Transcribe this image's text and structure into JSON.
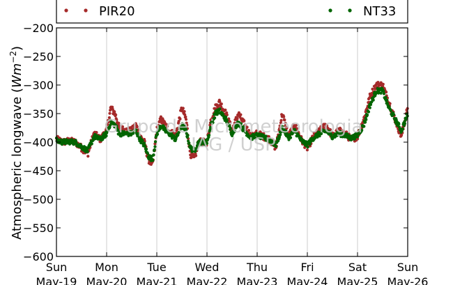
{
  "chart_data": {
    "type": "scatter",
    "ylabel_text": "Atmospheric longwave (",
    "ylabel_unit_base": "Wm",
    "ylabel_unit_exp": "−2",
    "ylabel_close": ")",
    "xlim_days": [
      0,
      7
    ],
    "ylim": [
      -600,
      -200
    ],
    "yticks": [
      -200,
      -250,
      -300,
      -350,
      -400,
      -450,
      -500,
      -550,
      -600
    ],
    "ytick_labels": [
      "−200",
      "−250",
      "−300",
      "−350",
      "−400",
      "−450",
      "−500",
      "−550",
      "−600"
    ],
    "xticks": [
      {
        "day": "Sun",
        "date": "May-19"
      },
      {
        "day": "Mon",
        "date": "May-20"
      },
      {
        "day": "Tue",
        "date": "May-21"
      },
      {
        "day": "Wed",
        "date": "May-22"
      },
      {
        "day": "Thu",
        "date": "May-23"
      },
      {
        "day": "Fri",
        "date": "May-24"
      },
      {
        "day": "Sat",
        "date": "May-25"
      },
      {
        "day": "Sun",
        "date": "May-26"
      }
    ],
    "grid": "vertical",
    "legend_placement": "top",
    "series": [
      {
        "name": "PIR20",
        "color": "#a52a2a",
        "points": [
          [
            "May-19 00:00",
            -395
          ],
          [
            "May-19 03:00",
            -400
          ],
          [
            "May-19 06:00",
            -398
          ],
          [
            "May-19 09:00",
            -400
          ],
          [
            "May-19 12:00",
            -410
          ],
          [
            "May-19 15:00",
            -420
          ],
          [
            "May-19 18:00",
            -385
          ],
          [
            "May-19 21:00",
            -395
          ],
          [
            "May-20 00:00",
            -380
          ],
          [
            "May-20 02:00",
            -340
          ],
          [
            "May-20 04:00",
            -350
          ],
          [
            "May-20 06:00",
            -375
          ],
          [
            "May-20 09:00",
            -380
          ],
          [
            "May-20 12:00",
            -380
          ],
          [
            "May-20 14:00",
            -370
          ],
          [
            "May-20 16:00",
            -390
          ],
          [
            "May-20 18:00",
            -400
          ],
          [
            "May-20 20:00",
            -430
          ],
          [
            "May-20 22:00",
            -440
          ],
          [
            "May-21 00:00",
            -380
          ],
          [
            "May-21 02:00",
            -360
          ],
          [
            "May-21 04:00",
            -370
          ],
          [
            "May-21 06:00",
            -380
          ],
          [
            "May-21 09:00",
            -390
          ],
          [
            "May-21 12:00",
            -340
          ],
          [
            "May-21 14:00",
            -360
          ],
          [
            "May-21 16:00",
            -420
          ],
          [
            "May-21 18:00",
            -430
          ],
          [
            "May-21 20:00",
            -400
          ],
          [
            "May-22 00:00",
            -400
          ],
          [
            "May-22 02:00",
            -360
          ],
          [
            "May-22 04:00",
            -340
          ],
          [
            "May-22 06:00",
            -330
          ],
          [
            "May-22 09:00",
            -350
          ],
          [
            "May-22 12:00",
            -380
          ],
          [
            "May-22 15:00",
            -350
          ],
          [
            "May-22 18:00",
            -370
          ],
          [
            "May-22 21:00",
            -390
          ],
          [
            "May-23 00:00",
            -385
          ],
          [
            "May-23 03:00",
            -390
          ],
          [
            "May-23 06:00",
            -395
          ],
          [
            "May-23 09:00",
            -410
          ],
          [
            "May-23 12:00",
            -350
          ],
          [
            "May-23 15:00",
            -390
          ],
          [
            "May-23 18:00",
            -370
          ],
          [
            "May-23 21:00",
            -395
          ],
          [
            "May-24 00:00",
            -410
          ],
          [
            "May-24 03:00",
            -390
          ],
          [
            "May-24 06:00",
            -380
          ],
          [
            "May-24 09:00",
            -370
          ],
          [
            "May-24 12:00",
            -390
          ],
          [
            "May-24 15:00",
            -380
          ],
          [
            "May-24 18:00",
            -385
          ],
          [
            "May-24 21:00",
            -395
          ],
          [
            "May-25 00:00",
            -390
          ],
          [
            "May-25 03:00",
            -360
          ],
          [
            "May-25 06:00",
            -320
          ],
          [
            "May-25 09:00",
            -300
          ],
          [
            "May-25 12:00",
            -300
          ],
          [
            "May-25 15:00",
            -330
          ],
          [
            "May-25 18:00",
            -360
          ],
          [
            "May-25 21:00",
            -390
          ],
          [
            "May-26 00:00",
            -340
          ]
        ]
      },
      {
        "name": "NT33",
        "color": "#006400",
        "points": [
          [
            "May-19 00:00",
            -397
          ],
          [
            "May-19 03:00",
            -400
          ],
          [
            "May-19 06:00",
            -399
          ],
          [
            "May-19 09:00",
            -400
          ],
          [
            "May-19 12:00",
            -408
          ],
          [
            "May-19 15:00",
            -415
          ],
          [
            "May-19 18:00",
            -390
          ],
          [
            "May-19 21:00",
            -395
          ],
          [
            "May-20 00:00",
            -385
          ],
          [
            "May-20 02:00",
            -365
          ],
          [
            "May-20 04:00",
            -370
          ],
          [
            "May-20 06:00",
            -385
          ],
          [
            "May-20 09:00",
            -385
          ],
          [
            "May-20 12:00",
            -385
          ],
          [
            "May-20 14:00",
            -380
          ],
          [
            "May-20 16:00",
            -395
          ],
          [
            "May-20 18:00",
            -405
          ],
          [
            "May-20 20:00",
            -425
          ],
          [
            "May-20 22:00",
            -430
          ],
          [
            "May-21 00:00",
            -385
          ],
          [
            "May-21 02:00",
            -370
          ],
          [
            "May-21 04:00",
            -380
          ],
          [
            "May-21 06:00",
            -385
          ],
          [
            "May-21 09:00",
            -395
          ],
          [
            "May-21 12:00",
            -370
          ],
          [
            "May-21 14:00",
            -380
          ],
          [
            "May-21 16:00",
            -410
          ],
          [
            "May-21 18:00",
            -415
          ],
          [
            "May-21 20:00",
            -400
          ],
          [
            "May-22 00:00",
            -400
          ],
          [
            "May-22 02:00",
            -370
          ],
          [
            "May-22 04:00",
            -350
          ],
          [
            "May-22 06:00",
            -345
          ],
          [
            "May-22 09:00",
            -360
          ],
          [
            "May-22 12:00",
            -385
          ],
          [
            "May-22 15:00",
            -365
          ],
          [
            "May-22 18:00",
            -380
          ],
          [
            "May-22 21:00",
            -392
          ],
          [
            "May-23 00:00",
            -388
          ],
          [
            "May-23 03:00",
            -392
          ],
          [
            "May-23 06:00",
            -396
          ],
          [
            "May-23 09:00",
            -405
          ],
          [
            "May-23 12:00",
            -375
          ],
          [
            "May-23 15:00",
            -392
          ],
          [
            "May-23 18:00",
            -380
          ],
          [
            "May-23 21:00",
            -397
          ],
          [
            "May-24 00:00",
            -405
          ],
          [
            "May-24 03:00",
            -392
          ],
          [
            "May-24 06:00",
            -385
          ],
          [
            "May-24 09:00",
            -380
          ],
          [
            "May-24 12:00",
            -390
          ],
          [
            "May-24 15:00",
            -385
          ],
          [
            "May-24 18:00",
            -388
          ],
          [
            "May-24 21:00",
            -393
          ],
          [
            "May-25 00:00",
            -388
          ],
          [
            "May-25 03:00",
            -370
          ],
          [
            "May-25 06:00",
            -335
          ],
          [
            "May-25 09:00",
            -310
          ],
          [
            "May-25 12:00",
            -310
          ],
          [
            "May-25 15:00",
            -340
          ],
          [
            "May-25 18:00",
            -360
          ],
          [
            "May-25 21:00",
            -380
          ],
          [
            "May-26 00:00",
            -350
          ]
        ]
      }
    ],
    "watermark_line1": "Grupo de Micrometeorologia",
    "watermark_line2": "IAG / USP"
  }
}
